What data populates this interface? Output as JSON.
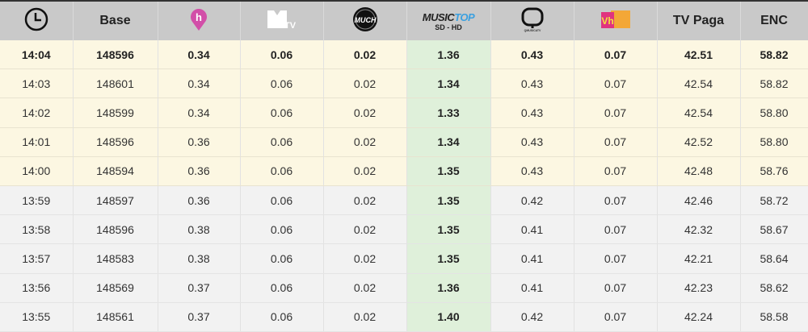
{
  "header": {
    "time_icon": "clock-icon",
    "base": "Base",
    "channels": [
      {
        "name": "h-channel-logo",
        "color": "#d24fa8",
        "text": "h"
      },
      {
        "name": "mtv-logo",
        "text": "MTV"
      },
      {
        "name": "much-logo",
        "text": "MUCH"
      },
      {
        "name": "musictop-logo",
        "text": "MUSICTOP",
        "sub": "SD - HD",
        "accent": "#3aa0e0"
      },
      {
        "name": "qmusica-logo",
        "text": "QMUSICATV"
      },
      {
        "name": "vh1-logo",
        "text": "VH1",
        "colors": [
          "#e0337f",
          "#f3a737"
        ]
      }
    ],
    "tvpaga": "TV Paga",
    "enc": "ENC"
  },
  "rows": [
    [
      "14:04",
      "148596",
      "0.34",
      "0.06",
      "0.02",
      "1.36",
      "0.43",
      "0.07",
      "42.51",
      "58.82"
    ],
    [
      "14:03",
      "148601",
      "0.34",
      "0.06",
      "0.02",
      "1.34",
      "0.43",
      "0.07",
      "42.54",
      "58.82"
    ],
    [
      "14:02",
      "148599",
      "0.34",
      "0.06",
      "0.02",
      "1.33",
      "0.43",
      "0.07",
      "42.54",
      "58.80"
    ],
    [
      "14:01",
      "148596",
      "0.36",
      "0.06",
      "0.02",
      "1.34",
      "0.43",
      "0.07",
      "42.52",
      "58.80"
    ],
    [
      "14:00",
      "148594",
      "0.36",
      "0.06",
      "0.02",
      "1.35",
      "0.43",
      "0.07",
      "42.48",
      "58.76"
    ],
    [
      "13:59",
      "148597",
      "0.36",
      "0.06",
      "0.02",
      "1.35",
      "0.42",
      "0.07",
      "42.46",
      "58.72"
    ],
    [
      "13:58",
      "148596",
      "0.38",
      "0.06",
      "0.02",
      "1.35",
      "0.41",
      "0.07",
      "42.32",
      "58.67"
    ],
    [
      "13:57",
      "148583",
      "0.38",
      "0.06",
      "0.02",
      "1.35",
      "0.41",
      "0.07",
      "42.21",
      "58.64"
    ],
    [
      "13:56",
      "148569",
      "0.37",
      "0.06",
      "0.02",
      "1.36",
      "0.41",
      "0.07",
      "42.23",
      "58.62"
    ],
    [
      "13:55",
      "148561",
      "0.37",
      "0.06",
      "0.02",
      "1.40",
      "0.42",
      "0.07",
      "42.24",
      "58.58"
    ]
  ]
}
